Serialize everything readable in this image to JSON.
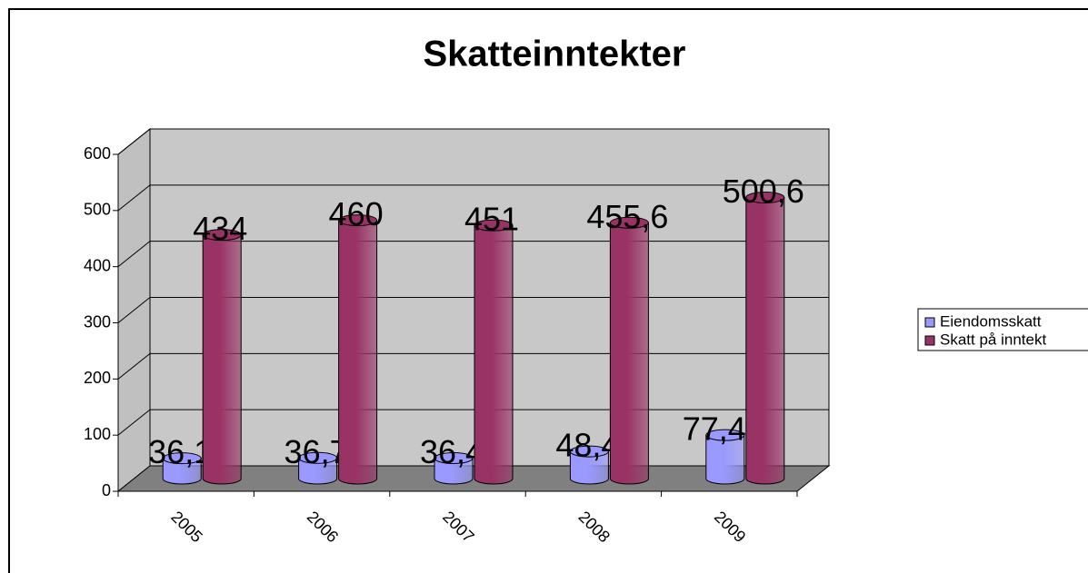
{
  "chart_data": {
    "type": "bar",
    "title": "Skatteinntekter",
    "categories": [
      "2005",
      "2006",
      "2007",
      "2008",
      "2009"
    ],
    "series": [
      {
        "name": "Eiendomsskatt",
        "color": "#9999ff",
        "values": [
          36.1,
          36.7,
          36.4,
          48.4,
          77.41
        ],
        "value_labels": [
          "36,1",
          "36,7",
          "36,4",
          "48,4",
          "77,41"
        ]
      },
      {
        "name": "Skatt på inntekt",
        "color": "#993366",
        "values": [
          434,
          460,
          451,
          455.6,
          500.6
        ],
        "value_labels": [
          "434",
          "460",
          "451",
          "455,6",
          "500,6"
        ]
      }
    ],
    "ylim": [
      0,
      600
    ],
    "yticks": [
      0,
      100,
      200,
      300,
      400,
      500,
      600
    ],
    "grid": true,
    "legend": "right"
  }
}
